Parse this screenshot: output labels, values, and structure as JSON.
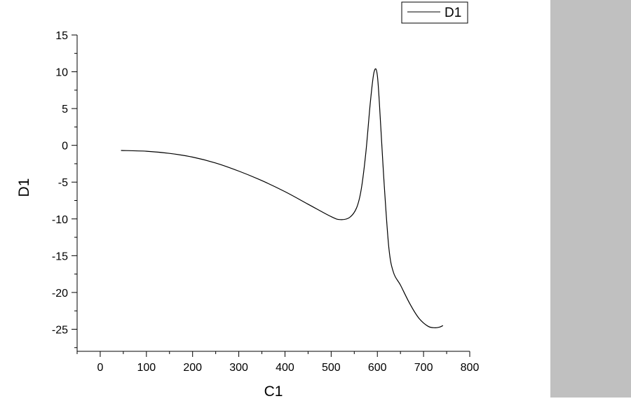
{
  "chart_data": {
    "type": "line",
    "xlabel": "C1",
    "ylabel": "D1",
    "xlim": [
      -50,
      800
    ],
    "ylim": [
      -28,
      15
    ],
    "xticks": [
      0,
      100,
      200,
      300,
      400,
      500,
      600,
      700,
      800
    ],
    "yticks": [
      15,
      10,
      5,
      0,
      -5,
      -10,
      -15,
      -20,
      -25
    ],
    "xtick_labels": [
      "0",
      "100",
      "200",
      "300",
      "400",
      "500",
      "600",
      "700",
      "800"
    ],
    "ytick_labels": [
      "15",
      "10",
      "5",
      "0",
      "-5",
      "-10",
      "-15",
      "-20",
      "-25"
    ],
    "legend": {
      "entries": [
        "D1"
      ],
      "position": "top-right"
    },
    "grid": false,
    "series": [
      {
        "name": "D1",
        "color": "#000000",
        "x": [
          45,
          100,
          150,
          200,
          250,
          300,
          350,
          400,
          450,
          500,
          520,
          540,
          555,
          565,
          575,
          585,
          593,
          600,
          607,
          615,
          625,
          635,
          650,
          670,
          690,
          710,
          725,
          735,
          742
        ],
        "y": [
          -0.7,
          -0.8,
          -1.1,
          -1.6,
          -2.4,
          -3.5,
          -4.8,
          -6.3,
          -8.0,
          -9.7,
          -10.1,
          -9.8,
          -8.5,
          -6.0,
          -1.0,
          6.0,
          10.0,
          9.5,
          3.0,
          -5.5,
          -14.0,
          -17.3,
          -19.0,
          -21.5,
          -23.5,
          -24.6,
          -24.8,
          -24.7,
          -24.5
        ]
      }
    ]
  }
}
